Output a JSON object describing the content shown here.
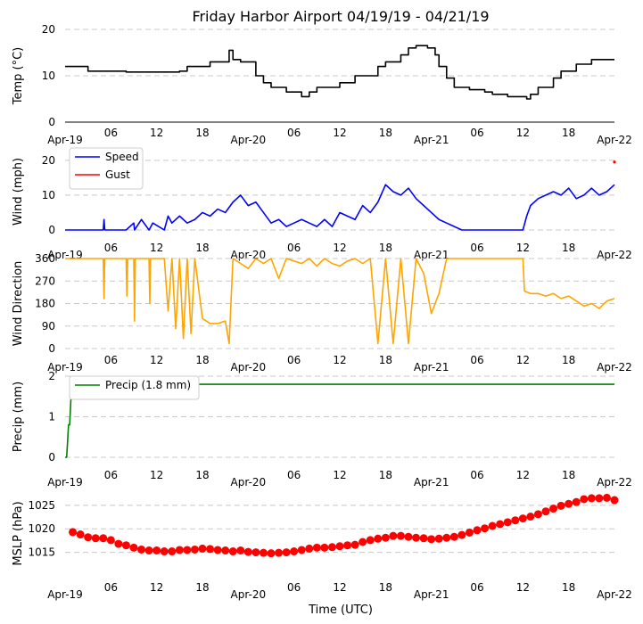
{
  "chart_data": {
    "title": "Friday Harbor Airport 04/19/19 - 04/21/19",
    "xlabel": "Time (UTC)",
    "x_ticks": [
      "Apr-19",
      "06",
      "12",
      "18",
      "Apr-20",
      "06",
      "12",
      "18",
      "Apr-21",
      "06",
      "12",
      "18",
      "Apr-22"
    ],
    "x_range_hours": [
      0,
      72
    ],
    "panels": [
      {
        "id": "temp",
        "type": "line",
        "ylabel": "Temp (°C)",
        "ylim": [
          0,
          20
        ],
        "yticks": [
          0,
          10,
          20
        ],
        "grid": true,
        "series": [
          {
            "color": "#000000",
            "step": true,
            "x": [
              0,
              3,
              8,
              15,
              16,
              19,
              20,
              21.5,
              22,
              23,
              25,
              26,
              27,
              29,
              31,
              32,
              33,
              36,
              38,
              41,
              42,
              44,
              45,
              46,
              46.5,
              47.5,
              48.5,
              49,
              50,
              51,
              53,
              55,
              56,
              58,
              60,
              60.5,
              61,
              62,
              64,
              65,
              67,
              69,
              72
            ],
            "y": [
              12,
              11,
              10.8,
              11,
              12,
              13,
              13,
              15.5,
              13.5,
              13,
              10,
              8.5,
              7.5,
              6.5,
              5.5,
              6.5,
              7.5,
              8.5,
              10,
              12,
              13,
              14.5,
              16,
              16.5,
              16.5,
              16,
              14.5,
              12,
              9.5,
              7.5,
              7,
              6.5,
              6,
              5.5,
              5.5,
              5,
              6,
              7.5,
              9.5,
              11,
              12.5,
              13.5,
              13.5
            ]
          }
        ]
      },
      {
        "id": "wind",
        "type": "line",
        "ylabel": "Wind (mph)",
        "ylim": [
          0,
          22
        ],
        "yticks": [
          0,
          10,
          20
        ],
        "grid": true,
        "legend": {
          "position": "top-left",
          "entries": [
            "Speed",
            "Gust"
          ]
        },
        "series": [
          {
            "name": "Speed",
            "color": "#0000ff",
            "x": [
              0,
              5,
              5.1,
              5.2,
              8,
              9,
              9.1,
              10,
              11,
              11.5,
              13,
              13.5,
              14,
              15,
              16,
              17,
              18,
              19,
              20,
              21,
              22,
              23,
              24,
              25,
              26,
              27,
              28,
              29,
              30,
              31,
              32,
              33,
              34,
              35,
              36,
              37,
              38,
              39,
              40,
              41,
              42,
              43,
              44,
              45,
              46,
              47,
              48,
              49,
              50,
              52,
              60,
              60.5,
              61,
              62,
              63,
              64,
              65,
              66,
              67,
              68,
              69,
              70,
              71,
              72
            ],
            "y": [
              0,
              0,
              3,
              0,
              0,
              2,
              0,
              3,
              0,
              2,
              0,
              4,
              2,
              4,
              2,
              3,
              5,
              4,
              6,
              5,
              8,
              10,
              7,
              8,
              5,
              2,
              3,
              1,
              2,
              3,
              2,
              1,
              3,
              1,
              5,
              4,
              3,
              7,
              5,
              8,
              13,
              11,
              10,
              12,
              9,
              7,
              5,
              3,
              2,
              0,
              0,
              4,
              7,
              9,
              10,
              11,
              10,
              12,
              9,
              10,
              12,
              10,
              11,
              13
            ]
          },
          {
            "name": "Gust",
            "color": "#ff0000",
            "x": [
              72
            ],
            "y": [
              19.5
            ]
          }
        ]
      },
      {
        "id": "dir",
        "type": "line",
        "ylabel": "Wind Direction",
        "ylim": [
          0,
          360
        ],
        "yticks": [
          0,
          90,
          180,
          270,
          360
        ],
        "grid": true,
        "series": [
          {
            "color": "#ffa500",
            "x": [
              0,
              5,
              5.1,
              5.2,
              8,
              8.1,
              8.2,
              9,
              9.1,
              9.2,
              11,
              11.1,
              11.2,
              13,
              13.5,
              14,
              14.5,
              15,
              15.5,
              16,
              16.5,
              17,
              18,
              19,
              20,
              21,
              21.5,
              22,
              23,
              24,
              25,
              26,
              27,
              28,
              29,
              30,
              31,
              32,
              33,
              34,
              35,
              36,
              37,
              38,
              39,
              40,
              41,
              42,
              43,
              44,
              45,
              46,
              47,
              48,
              49,
              50,
              52,
              60,
              60.2,
              61,
              62,
              63,
              64,
              65,
              66,
              67,
              68,
              69,
              70,
              71,
              72
            ],
            "y": [
              360,
              360,
              200,
              360,
              360,
              210,
              360,
              360,
              110,
              360,
              360,
              180,
              360,
              360,
              150,
              360,
              80,
              360,
              40,
              360,
              60,
              360,
              120,
              100,
              100,
              110,
              20,
              360,
              340,
              320,
              360,
              340,
              360,
              280,
              360,
              350,
              340,
              360,
              330,
              360,
              340,
              330,
              350,
              360,
              340,
              360,
              20,
              360,
              20,
              360,
              20,
              360,
              300,
              140,
              220,
              360,
              360,
              360,
              230,
              220,
              220,
              210,
              220,
              200,
              210,
              190,
              170,
              180,
              160,
              190,
              200
            ]
          }
        ]
      },
      {
        "id": "precip",
        "type": "line",
        "ylabel": "Precip (mm)",
        "ylim": [
          0,
          2
        ],
        "yticks": [
          0,
          1,
          2
        ],
        "grid": true,
        "legend": {
          "position": "top-left",
          "entries": [
            "Precip (1.8 mm)"
          ]
        },
        "series": [
          {
            "name": "Precip (1.8 mm)",
            "color": "#008000",
            "x": [
              0,
              0.2,
              0.3,
              0.45,
              0.6,
              0.75,
              0.9,
              1.0,
              1.2,
              1.4,
              72
            ],
            "y": [
              0,
              0,
              0.3,
              0.8,
              0.8,
              1.4,
              1.55,
              1.7,
              1.8,
              1.8,
              1.8
            ]
          }
        ]
      },
      {
        "id": "mslp",
        "type": "line",
        "ylabel": "MSLP (hPa)",
        "ylim": [
          1010,
          1028
        ],
        "yticks": [
          1015,
          1020,
          1025
        ],
        "grid": true,
        "series": [
          {
            "color": "#ff0000",
            "markers": true,
            "x": [
              1,
              2,
              3,
              4,
              5,
              6,
              7,
              8,
              9,
              10,
              11,
              12,
              13,
              14,
              15,
              16,
              17,
              18,
              19,
              20,
              21,
              22,
              23,
              24,
              25,
              26,
              27,
              28,
              29,
              30,
              31,
              32,
              33,
              34,
              35,
              36,
              37,
              38,
              39,
              40,
              41,
              42,
              43,
              44,
              45,
              46,
              47,
              48,
              49,
              50,
              51,
              52,
              53,
              54,
              55,
              56,
              57,
              58,
              59,
              60,
              61,
              62,
              63,
              64,
              65,
              66,
              67,
              68,
              69,
              70,
              71,
              72
            ],
            "y": [
              1019.3,
              1018.8,
              1018.2,
              1018.0,
              1018.0,
              1017.6,
              1016.8,
              1016.5,
              1016.0,
              1015.6,
              1015.4,
              1015.4,
              1015.2,
              1015.2,
              1015.5,
              1015.5,
              1015.6,
              1015.8,
              1015.7,
              1015.5,
              1015.4,
              1015.2,
              1015.4,
              1015.1,
              1015.0,
              1014.9,
              1014.8,
              1014.9,
              1015.0,
              1015.2,
              1015.5,
              1015.8,
              1016.0,
              1016.0,
              1016.1,
              1016.3,
              1016.5,
              1016.6,
              1017.2,
              1017.6,
              1017.9,
              1018.1,
              1018.5,
              1018.5,
              1018.3,
              1018.1,
              1018.0,
              1017.8,
              1017.9,
              1018.1,
              1018.3,
              1018.7,
              1019.2,
              1019.7,
              1020.1,
              1020.6,
              1021.0,
              1021.4,
              1021.8,
              1022.2,
              1022.6,
              1023.1,
              1023.7,
              1024.3,
              1024.9,
              1025.3,
              1025.7,
              1026.3,
              1026.5,
              1026.5,
              1026.6,
              1026.1
            ]
          }
        ]
      }
    ]
  }
}
